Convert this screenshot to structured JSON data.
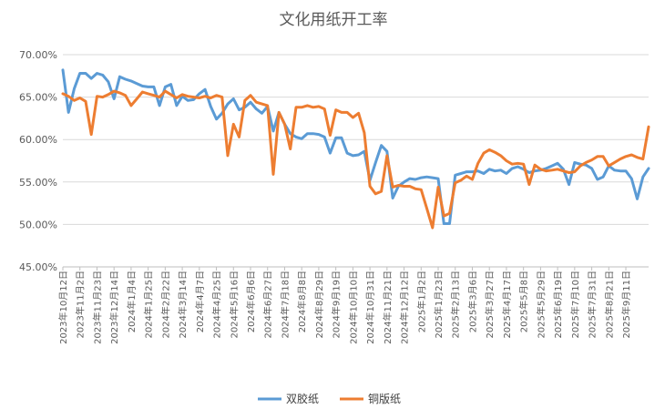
{
  "chart_data": {
    "type": "line",
    "title": "文化用纸开工率",
    "xlabel": "",
    "ylabel": "",
    "ylim": [
      45,
      70
    ],
    "y_ticks": [
      "45.00%",
      "50.00%",
      "55.00%",
      "60.00%",
      "65.00%",
      "70.00%"
    ],
    "x_tick_labels": [
      "2023年10月12日",
      "2023年11月2日",
      "2023年11月23日",
      "2023年12月14日",
      "2024年1月4日",
      "2024年1月25日",
      "2024年2月22日",
      "2024年3月14日",
      "2024年4月7日",
      "2024年4月25日",
      "2024年5月16日",
      "2024年6月6日",
      "2024年6月27日",
      "2024年7月18日",
      "2024年8月8日",
      "2024年8月29日",
      "2024年9月19日",
      "2024年10月10日",
      "2024年10月31日",
      "2024年11月21日",
      "2024年12月12日",
      "2025年1月2日",
      "2025年1月23日",
      "2025年2月13日",
      "2025年3月6日",
      "2025年3月27日",
      "2025年4月17日",
      "2025年5月8日",
      "2025年5月29日",
      "2025年6月19日",
      "2025年7月10日",
      "2025年7月31日",
      "2025年8月21日",
      "2025年9月11日"
    ],
    "x_tick_spacing_weeks": 3,
    "legend": "bottom",
    "grid": true,
    "series": [
      {
        "name": "双胶纸",
        "color": "#5b9bd5",
        "values": [
          68.2,
          63.2,
          66.0,
          67.8,
          67.8,
          67.2,
          67.8,
          67.6,
          66.8,
          64.8,
          67.4,
          67.1,
          66.9,
          66.6,
          66.3,
          66.2,
          66.2,
          64.0,
          66.2,
          66.5,
          64.0,
          65.1,
          64.6,
          64.7,
          65.4,
          65.9,
          63.9,
          62.4,
          63.1,
          64.2,
          64.8,
          63.5,
          63.8,
          64.4,
          63.6,
          63.1,
          63.9,
          61.0,
          63.2,
          61.8,
          60.7,
          60.3,
          60.1,
          60.7,
          60.7,
          60.6,
          60.3,
          58.4,
          60.2,
          60.2,
          58.4,
          58.1,
          58.2,
          58.6,
          55.2,
          57.3,
          59.3,
          58.6,
          53.1,
          54.5,
          55.0,
          55.4,
          55.3,
          55.5,
          55.6,
          55.5,
          55.4,
          50.1,
          50.1,
          55.8,
          56.0,
          56.2,
          56.2,
          56.3,
          56.0,
          56.5,
          56.3,
          56.4,
          56.0,
          56.6,
          56.8,
          56.5,
          56.1,
          56.3,
          56.4,
          56.6,
          56.9,
          57.2,
          56.5,
          54.7,
          57.3,
          57.1,
          57.0,
          56.6,
          55.3,
          55.6,
          56.9,
          56.4,
          56.3,
          56.3,
          55.4,
          53.0,
          55.6,
          56.6
        ]
      },
      {
        "name": "铜版纸",
        "color": "#ed7d31",
        "values": [
          65.4,
          65.1,
          64.6,
          64.9,
          64.5,
          60.6,
          65.1,
          65.0,
          65.3,
          65.7,
          65.5,
          65.2,
          64.0,
          64.8,
          65.6,
          65.4,
          65.2,
          65.0,
          65.7,
          65.3,
          64.9,
          65.3,
          65.1,
          65.0,
          64.9,
          65.1,
          64.9,
          65.2,
          65.0,
          58.1,
          61.8,
          60.3,
          64.6,
          65.2,
          64.4,
          64.2,
          64.0,
          55.9,
          63.2,
          61.8,
          58.9,
          63.8,
          63.8,
          64.0,
          63.8,
          63.9,
          63.6,
          60.5,
          63.5,
          63.2,
          63.2,
          62.6,
          63.1,
          60.8,
          54.5,
          53.6,
          53.9,
          58.1,
          54.4,
          54.6,
          54.5,
          54.5,
          54.2,
          54.1,
          51.9,
          49.6,
          54.4,
          51.0,
          51.3,
          54.9,
          55.2,
          55.7,
          55.3,
          57.2,
          58.4,
          58.8,
          58.5,
          58.1,
          57.5,
          57.1,
          57.2,
          57.1,
          54.7,
          57.0,
          56.5,
          56.3,
          56.4,
          56.5,
          56.3,
          56.1,
          56.2,
          56.9,
          57.3,
          57.6,
          58.0,
          58.0,
          56.9,
          57.3,
          57.7,
          58.0,
          58.2,
          57.9,
          57.7,
          61.5
        ]
      }
    ]
  }
}
